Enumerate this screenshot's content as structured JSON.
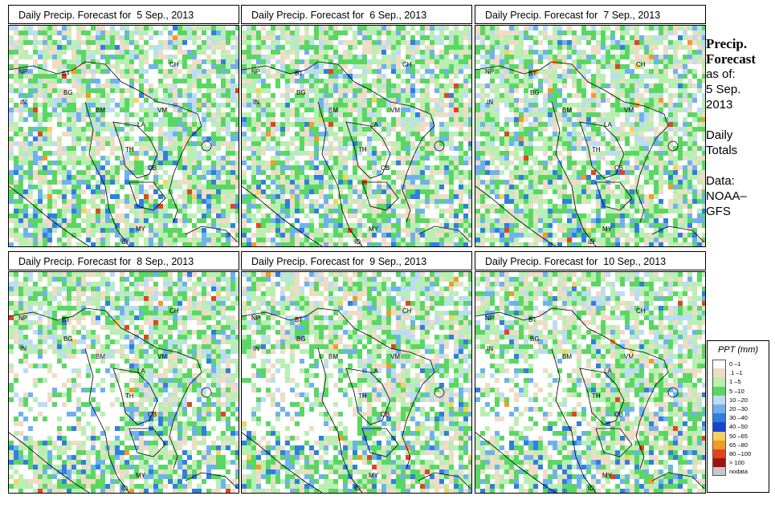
{
  "panels": [
    {
      "title": "Daily Precip. Forecast for  5 Sep., 2013"
    },
    {
      "title": "Daily Precip. Forecast for  6 Sep., 2013"
    },
    {
      "title": "Daily Precip. Forecast for  7 Sep., 2013"
    },
    {
      "title": "Daily Precip. Forecast for  8 Sep., 2013"
    },
    {
      "title": "Daily Precip. Forecast for  9 Sep., 2013"
    },
    {
      "title": "Daily Precip. Forecast for  10 Sep., 2013"
    }
  ],
  "country_labels": [
    "NP",
    "BT",
    "CH",
    "IN",
    "BG",
    "BM",
    "VM",
    "LA",
    "TH",
    "CB",
    "MY",
    "ID"
  ],
  "side": {
    "heading_line1": "Precip.",
    "heading_line2": "Forecast",
    "asof": "as of:",
    "date_line1": "5 Sep.",
    "date_line2": "2013",
    "daily_line1": "Daily",
    "daily_line2": "Totals",
    "data_line1": "Data:",
    "data_line2": "NOAA–",
    "data_line3": "GFS"
  },
  "legend": {
    "title": "PPT (mm)",
    "items": [
      {
        "label": "0 –1",
        "color": "#ffffff"
      },
      {
        "label": ".1 –1",
        "color": "#eedcc5"
      },
      {
        "label": "1 –5",
        "color": "#b9efb2"
      },
      {
        "label": "5 –10",
        "color": "#5ad763"
      },
      {
        "label": "10 –20",
        "color": "#bcdcf5"
      },
      {
        "label": "20 –30",
        "color": "#6eb2ec"
      },
      {
        "label": "30 –40",
        "color": "#2f7fe0"
      },
      {
        "label": "40 –50",
        "color": "#1744d0"
      },
      {
        "label": "50 –65",
        "color": "#f6d25a"
      },
      {
        "label": "65 –80",
        "color": "#f49a24"
      },
      {
        "label": "80 –100",
        "color": "#e04520"
      },
      {
        "label": "> 100",
        "color": "#a41010"
      },
      {
        "label": "nodata",
        "color": "#c8c8c8"
      }
    ]
  }
}
